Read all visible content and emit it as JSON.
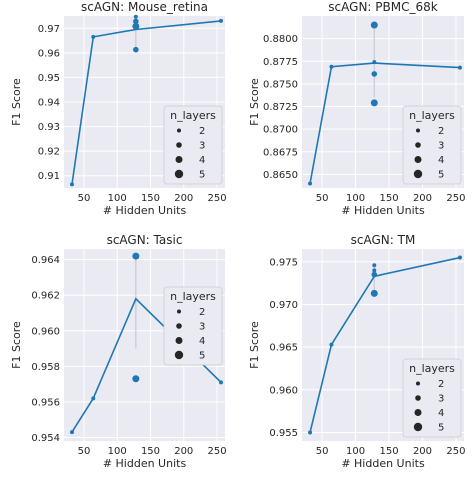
{
  "chart_data": [
    {
      "type": "line",
      "title": "scAGN: Mouse_retina",
      "xlabel": "# Hidden Units",
      "ylabel": "F1 Score",
      "xlim": [
        20,
        262
      ],
      "ylim": [
        0.905,
        0.975
      ],
      "xticks": [
        50,
        100,
        150,
        200,
        250
      ],
      "yticks": [
        0.91,
        0.92,
        0.93,
        0.94,
        0.95,
        0.96,
        0.97
      ],
      "ytick_labels": [
        "0.91",
        "0.92",
        "0.93",
        "0.94",
        "0.95",
        "0.96",
        "0.97"
      ],
      "line": {
        "x": [
          32,
          64,
          128,
          256
        ],
        "y": [
          0.9065,
          0.9665,
          0.9695,
          0.973
        ]
      },
      "errorbar": {
        "x": 128,
        "low": 0.9613,
        "high": 0.9747
      },
      "points": [
        {
          "x": 32,
          "y": 0.9065,
          "n_layers": 2
        },
        {
          "x": 64,
          "y": 0.9665,
          "n_layers": 2
        },
        {
          "x": 128,
          "y": 0.9747,
          "n_layers": 2
        },
        {
          "x": 128,
          "y": 0.9728,
          "n_layers": 3
        },
        {
          "x": 128,
          "y": 0.9708,
          "n_layers": 4
        },
        {
          "x": 128,
          "y": 0.9613,
          "n_layers": 3
        },
        {
          "x": 256,
          "y": 0.973,
          "n_layers": 2
        }
      ],
      "legend": {
        "title": "n_layers",
        "entries": [
          "2",
          "3",
          "4",
          "5"
        ],
        "location": "lower-right"
      },
      "grid": true
    },
    {
      "type": "line",
      "title": "scAGN: PBMC_68k",
      "xlabel": "# Hidden Units",
      "ylabel": "F1 Score",
      "xlim": [
        20,
        262
      ],
      "ylim": [
        0.8635,
        0.8825
      ],
      "xticks": [
        50,
        100,
        150,
        200,
        250
      ],
      "yticks": [
        0.865,
        0.8675,
        0.87,
        0.8725,
        0.875,
        0.8775,
        0.88
      ],
      "ytick_labels": [
        "0.8650",
        "0.8675",
        "0.8700",
        "0.8725",
        "0.8750",
        "0.8775",
        "0.8800"
      ],
      "line": {
        "x": [
          32,
          64,
          128,
          256
        ],
        "y": [
          0.864,
          0.8769,
          0.8773,
          0.8768
        ]
      },
      "errorbar": {
        "x": 128,
        "low": 0.8735,
        "high": 0.8813
      },
      "points": [
        {
          "x": 32,
          "y": 0.864,
          "n_layers": 2
        },
        {
          "x": 64,
          "y": 0.8769,
          "n_layers": 2
        },
        {
          "x": 128,
          "y": 0.8815,
          "n_layers": 4
        },
        {
          "x": 128,
          "y": 0.8774,
          "n_layers": 2
        },
        {
          "x": 128,
          "y": 0.8761,
          "n_layers": 3
        },
        {
          "x": 128,
          "y": 0.8729,
          "n_layers": 4
        },
        {
          "x": 256,
          "y": 0.8768,
          "n_layers": 2
        }
      ],
      "legend": {
        "title": "n_layers",
        "entries": [
          "2",
          "3",
          "4",
          "5"
        ],
        "location": "lower-right"
      },
      "grid": true
    },
    {
      "type": "line",
      "title": "scAGN: Tasic",
      "xlabel": "# Hidden Units",
      "ylabel": "F1 Score",
      "xlim": [
        20,
        262
      ],
      "ylim": [
        0.9538,
        0.9646
      ],
      "xticks": [
        50,
        100,
        150,
        200,
        250
      ],
      "yticks": [
        0.954,
        0.956,
        0.958,
        0.96,
        0.962,
        0.964
      ],
      "ytick_labels": [
        "0.954",
        "0.956",
        "0.958",
        "0.960",
        "0.962",
        "0.964"
      ],
      "line": {
        "x": [
          32,
          64,
          128,
          256
        ],
        "y": [
          0.9543,
          0.9562,
          0.9618,
          0.9571
        ]
      },
      "errorbar": {
        "x": 128,
        "low": 0.959,
        "high": 0.9642
      },
      "points": [
        {
          "x": 32,
          "y": 0.9543,
          "n_layers": 2
        },
        {
          "x": 64,
          "y": 0.9562,
          "n_layers": 2
        },
        {
          "x": 128,
          "y": 0.9642,
          "n_layers": 4
        },
        {
          "x": 128,
          "y": 0.9573,
          "n_layers": 4
        },
        {
          "x": 256,
          "y": 0.9571,
          "n_layers": 2
        }
      ],
      "legend": {
        "title": "n_layers",
        "entries": [
          "2",
          "3",
          "4",
          "5"
        ],
        "location": "center-right"
      },
      "grid": true
    },
    {
      "type": "line",
      "title": "scAGN: TM",
      "xlabel": "# Hidden Units",
      "ylabel": "F1 Score",
      "xlim": [
        20,
        262
      ],
      "ylim": [
        0.954,
        0.9765
      ],
      "xticks": [
        50,
        100,
        150,
        200,
        250
      ],
      "yticks": [
        0.955,
        0.96,
        0.965,
        0.97,
        0.975
      ],
      "ytick_labels": [
        "0.955",
        "0.960",
        "0.965",
        "0.970",
        "0.975"
      ],
      "line": {
        "x": [
          32,
          64,
          128,
          256
        ],
        "y": [
          0.955,
          0.9653,
          0.9733,
          0.9755
        ]
      },
      "errorbar": {
        "x": 128,
        "low": 0.9713,
        "high": 0.9747
      },
      "points": [
        {
          "x": 32,
          "y": 0.955,
          "n_layers": 2
        },
        {
          "x": 64,
          "y": 0.9653,
          "n_layers": 2
        },
        {
          "x": 128,
          "y": 0.9746,
          "n_layers": 2
        },
        {
          "x": 128,
          "y": 0.974,
          "n_layers": 2
        },
        {
          "x": 128,
          "y": 0.9735,
          "n_layers": 3
        },
        {
          "x": 128,
          "y": 0.9713,
          "n_layers": 4
        },
        {
          "x": 256,
          "y": 0.9755,
          "n_layers": 2
        }
      ],
      "legend": {
        "title": "n_layers",
        "entries": [
          "2",
          "3",
          "4",
          "5"
        ],
        "location": "lower-right"
      },
      "grid": true
    }
  ],
  "colors": {
    "line": "#1f77b4",
    "marker": "#1f77b4",
    "axes_bg": "#eaeaf2",
    "grid": "#ffffff",
    "errorbar": "#c8c8d4",
    "legend_marker": "#262626"
  }
}
